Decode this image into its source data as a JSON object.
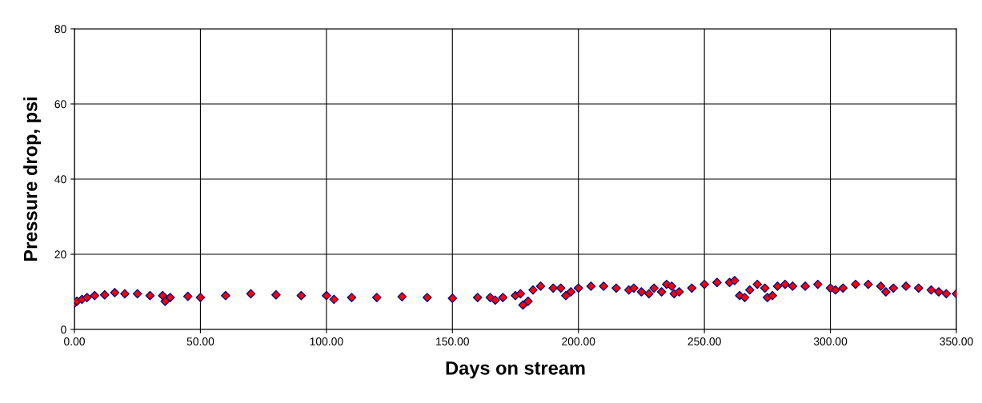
{
  "chart_data": {
    "type": "scatter",
    "xlabel": "Days on stream",
    "ylabel": "Pressure drop, psi",
    "x": [
      0,
      1,
      3,
      5,
      8,
      12,
      16,
      20,
      25,
      30,
      35,
      36,
      38,
      45,
      50,
      60,
      70,
      80,
      90,
      100,
      103,
      110,
      120,
      130,
      140,
      150,
      160,
      165,
      167,
      170,
      175,
      177,
      178,
      180,
      182,
      185,
      190,
      193,
      195,
      197,
      200,
      205,
      210,
      215,
      220,
      222,
      225,
      228,
      230,
      233,
      235,
      237,
      238,
      240,
      245,
      250,
      255,
      260,
      262,
      264,
      266,
      268,
      271,
      274,
      275,
      277,
      279,
      282,
      285,
      290,
      295,
      300,
      302,
      305,
      310,
      315,
      320,
      322,
      325,
      330,
      335,
      340,
      343,
      346,
      350
    ],
    "series": [
      {
        "color": "#ff0000",
        "values": [
          7,
          7.5,
          8,
          8.5,
          9,
          9.2,
          9.8,
          9.5,
          9.5,
          9,
          9,
          7.5,
          8.5,
          8.8,
          8.5,
          9,
          9.5,
          9.2,
          9,
          9,
          8,
          8.5,
          8.5,
          8.7,
          8.5,
          8.3,
          8.5,
          8.5,
          7.8,
          8.5,
          9,
          9.5,
          6.5,
          7.5,
          10.5,
          11.5,
          11,
          11,
          9,
          10,
          11,
          11.5,
          11.5,
          11,
          10.5,
          11,
          10,
          9.5,
          11,
          10,
          12,
          11.5,
          9.5,
          10,
          11,
          12,
          12.5,
          12.5,
          13,
          9,
          8.5,
          10.5,
          12,
          11,
          8.5,
          9,
          11.5,
          12,
          11.5,
          11.5,
          12,
          11,
          10.5,
          11,
          12,
          12,
          11.5,
          10,
          11,
          11.5,
          11,
          10.5,
          10,
          9.5,
          9.5
        ]
      }
    ],
    "xlim": [
      0,
      350
    ],
    "xticks": [
      {
        "value": 0,
        "label": "0.00"
      },
      {
        "value": 50,
        "label": "50.00"
      },
      {
        "value": 100,
        "label": "100.00"
      },
      {
        "value": 150,
        "label": "150.00"
      },
      {
        "value": 200,
        "label": "200.00"
      },
      {
        "value": 250,
        "label": "250.00"
      },
      {
        "value": 300,
        "label": "300.00"
      },
      {
        "value": 350,
        "label": "350.00"
      }
    ],
    "ylim": [
      0,
      80
    ],
    "yticks": [
      0,
      20,
      40,
      60,
      80
    ],
    "grid": true,
    "marker": "diamond",
    "legend": false
  }
}
